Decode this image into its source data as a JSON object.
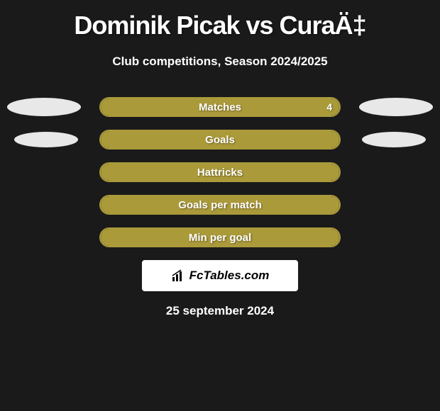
{
  "header": {
    "title": "Dominik Picak vs CuraÄ‡",
    "subtitle": "Club competitions, Season 2024/2025"
  },
  "stats": [
    {
      "label": "Matches",
      "value": "4",
      "fill_percent": 100,
      "show_left_ellipse": true,
      "show_right_ellipse": true
    },
    {
      "label": "Goals",
      "value": "",
      "fill_percent": 100,
      "show_left_ellipse": true,
      "show_right_ellipse": true
    },
    {
      "label": "Hattricks",
      "value": "",
      "fill_percent": 100,
      "show_left_ellipse": false,
      "show_right_ellipse": false
    },
    {
      "label": "Goals per match",
      "value": "",
      "fill_percent": 100,
      "show_left_ellipse": false,
      "show_right_ellipse": false
    },
    {
      "label": "Min per goal",
      "value": "",
      "fill_percent": 100,
      "show_left_ellipse": false,
      "show_right_ellipse": false
    }
  ],
  "logo": {
    "text": "FcTables.com"
  },
  "footer": {
    "date": "25 september 2024"
  },
  "colors": {
    "background": "#1a1a1a",
    "bar_fill": "#aa9a3a",
    "bar_border": "#aa9a3a",
    "ellipse": "#e8e8e8",
    "text": "#ffffff",
    "logo_bg": "#ffffff",
    "logo_text": "#000000"
  }
}
